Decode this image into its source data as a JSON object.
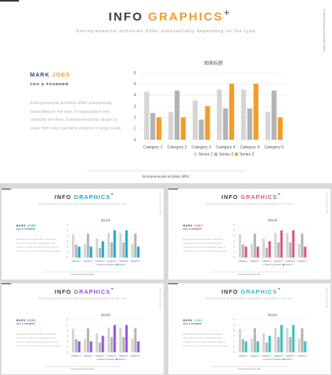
{
  "slide": {
    "title_a": "INFO ",
    "title_b": "GRAPHICS",
    "plus": "+",
    "subtitle": "Entrepreneurial activities differ substantially depending on the type",
    "side_text": "Entrepreneurial activities differ",
    "name_a": "MARK ",
    "name_b": "JOBS",
    "role": "CEO & FOUNDER",
    "body": "Entrepreneurial activities differ substantially depending on the type of organization and creativity involved. Entrepreneurship ranges in scale from solo, part-time projects to large-scale.",
    "footer": "Entrepreneurial activities differ"
  },
  "chart_data": {
    "type": "bar",
    "title": "图表标题",
    "categories": [
      "Category 1",
      "Category 2",
      "Category 3",
      "Category 4",
      "Category 5",
      "Category 6"
    ],
    "ylim": [
      0,
      6
    ],
    "yticks": [
      "0",
      "1",
      "2",
      "3",
      "4",
      "5",
      "6"
    ],
    "grid": true,
    "legend_position": "bottom",
    "series": [
      {
        "name": "Series 1",
        "values": [
          4.3,
          2.5,
          3.5,
          4.5,
          4.5,
          2.5
        ]
      },
      {
        "name": "Series 2",
        "values": [
          2.4,
          4.4,
          1.8,
          2.8,
          2.8,
          4.4
        ]
      },
      {
        "name": "Series 3",
        "values": [
          2.0,
          2.0,
          3.0,
          5.0,
          5.0,
          2.0
        ]
      }
    ]
  },
  "colors": {
    "series1": "#d5d5d5",
    "series2": "#b3b3b3",
    "variants": [
      {
        "accent": "#f39c26"
      },
      {
        "accent": "#17a8c8"
      },
      {
        "accent": "#e0507e"
      },
      {
        "accent": "#8c55d9"
      },
      {
        "accent": "#2ec2c0"
      }
    ]
  }
}
